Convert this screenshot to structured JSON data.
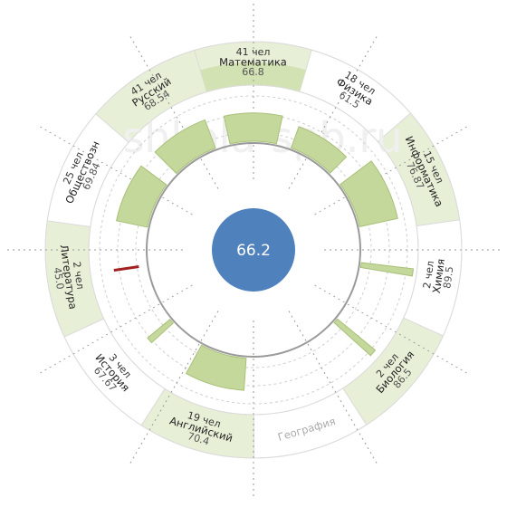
{
  "chart_data": {
    "type": "radial-bar",
    "overall_average": "66.2",
    "watermark": "shkola-spb.ru",
    "subjects": [
      {
        "name": "Математика",
        "count": "41 чел",
        "score": "66.8",
        "value": 66.8
      },
      {
        "name": "Физика",
        "count": "18 чел",
        "score": "61.5",
        "value": 61.5
      },
      {
        "name": "Информатика",
        "count": "15 чел",
        "score": "76.87",
        "value": 76.87
      },
      {
        "name": "Химия",
        "count": "2 чел",
        "score": "89.5",
        "value": 89.5
      },
      {
        "name": "Биология",
        "count": "2 чел",
        "score": "86.5",
        "value": 86.5
      },
      {
        "name": "География",
        "count": "",
        "score": "",
        "value": null
      },
      {
        "name": "Английский",
        "count": "19 чел",
        "score": "70.4",
        "value": 70.4
      },
      {
        "name": "История",
        "count": "3 чел",
        "score": "67.67",
        "value": 67.67
      },
      {
        "name": "Литература",
        "count": "2 чел",
        "score": "45.0",
        "value": 45.0
      },
      {
        "name": "Обществозн",
        "count": "25 чел",
        "score": "69.84",
        "value": 69.84
      },
      {
        "name": "Русский",
        "count": "41 чел",
        "score": "68.54",
        "value": 68.54
      }
    ],
    "value_range": [
      40,
      100
    ],
    "colors": {
      "bar": "#c5d89c",
      "bar_stroke": "#a9c079",
      "band_shaded": "#e7efd6",
      "band_cap": "#d3e2b3",
      "low_value": "#a32020",
      "center": "#4f81bd",
      "center_text": "#ffffff",
      "grid": "#cfcfcf",
      "label": "#333333",
      "muted_label": "#aaaaaa",
      "watermark": "#f0f0f0"
    }
  }
}
